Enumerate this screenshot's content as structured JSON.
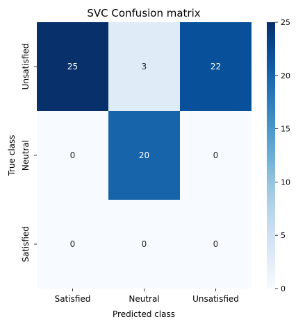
{
  "chart_data": {
    "type": "heatmap",
    "title": "SVC Confusion matrix",
    "xlabel": "Predicted class",
    "ylabel": "True class",
    "x_categories": [
      "Satisfied",
      "Neutral",
      "Unsatisfied"
    ],
    "y_categories": [
      "Unsatisfied",
      "Neutral",
      "Satisfied"
    ],
    "values": [
      [
        25,
        3,
        22
      ],
      [
        0,
        20,
        0
      ],
      [
        0,
        0,
        0
      ]
    ],
    "colorbar": {
      "range": [
        0,
        25
      ],
      "ticks": [
        0,
        5,
        10,
        15,
        20,
        25
      ],
      "colormap": "Blues"
    },
    "colors": {
      "low": "#f7fbff",
      "high": "#08306b"
    }
  }
}
